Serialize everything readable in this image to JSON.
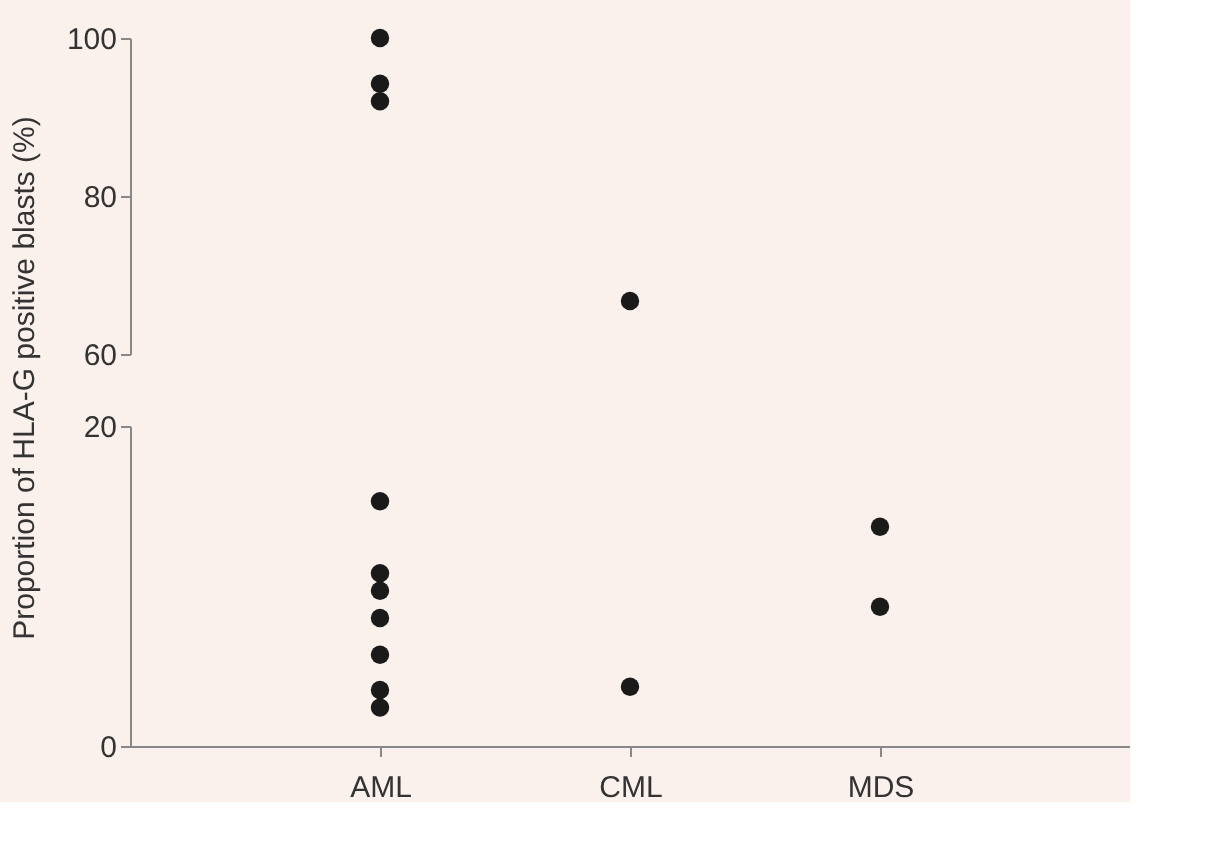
{
  "chart_data": [
    {
      "type": "scatter",
      "ylabel": "Proportion of HLA-G positive blasts (%)",
      "categories": [
        "AML",
        "CML",
        "MDS"
      ],
      "ylim": [
        60,
        100
      ],
      "yticks": [
        60,
        80,
        100
      ],
      "tick_labels": "y",
      "grid": false,
      "series": [
        {
          "color": "#1a1a1a",
          "x": [
            "AML",
            "AML",
            "AML",
            "CML"
          ],
          "values": [
            100,
            94.2,
            92,
            66.7
          ]
        }
      ]
    },
    {
      "type": "scatter",
      "categories": [
        "AML",
        "CML",
        "MDS"
      ],
      "ylim": [
        0,
        20
      ],
      "yticks": [
        0,
        20
      ],
      "grid": false,
      "series": [
        {
          "color": "#1a1a1a",
          "x": [
            "AML",
            "AML",
            "AML",
            "AML",
            "AML",
            "AML",
            "AML",
            "CML",
            "MDS",
            "MDS"
          ],
          "values": [
            15.3,
            10.8,
            9.7,
            8,
            5.7,
            3.5,
            2.4,
            3.7,
            13.7,
            8.7
          ]
        }
      ]
    }
  ]
}
